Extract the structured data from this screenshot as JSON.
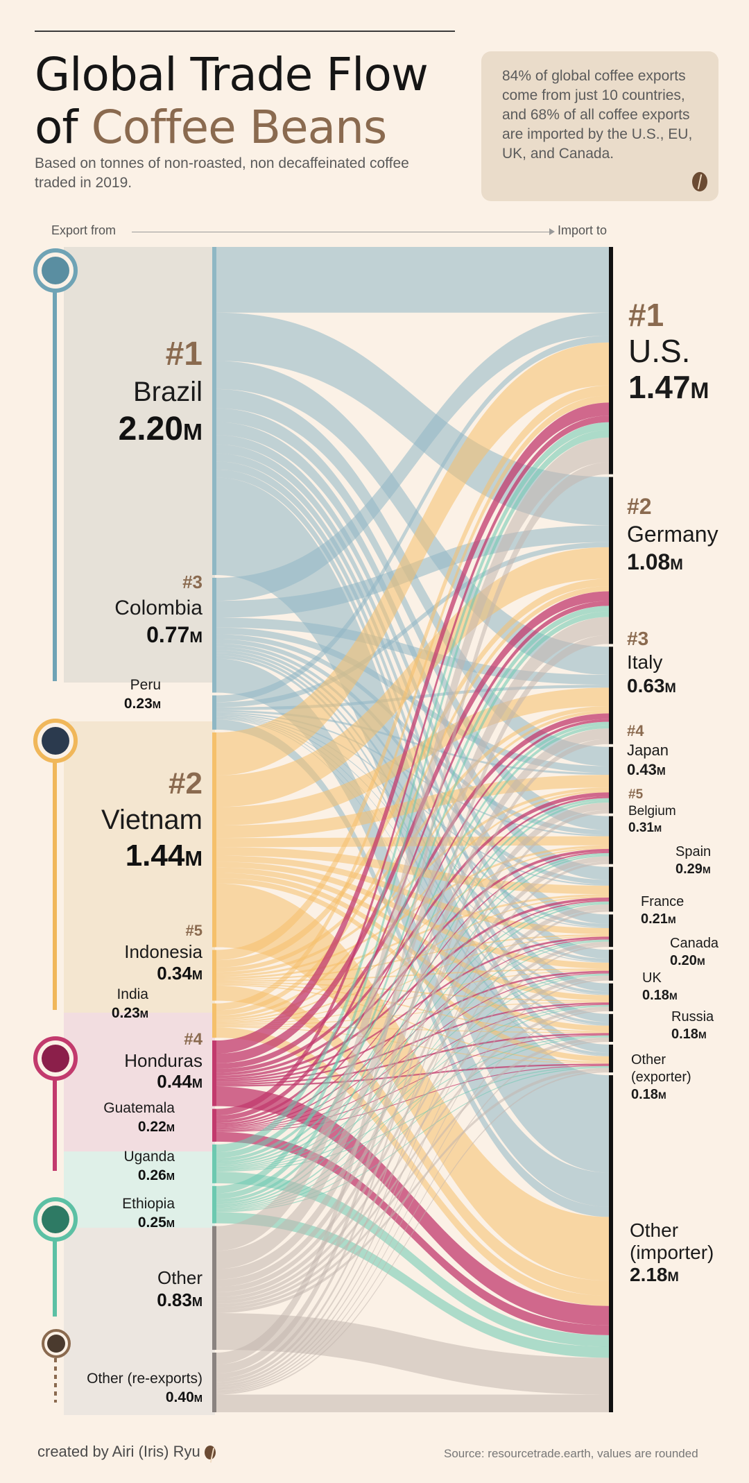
{
  "header": {
    "title_line1": "Global Trade Flow",
    "title_line2_prefix": "of ",
    "title_line2_accent": "Coffee Beans",
    "subtitle": "Based on tonnes of non-roasted, non decaffeinated coffee traded in 2019.",
    "callout": "84% of global coffee exports come from just 10 countries, and 68% of all coffee exports are imported by the U.S., EU, UK, and Canada."
  },
  "axis": {
    "export_label": "Export from",
    "import_label": "Import to"
  },
  "colors": {
    "south_america": "#8fb7c4",
    "asia": "#f5c06b",
    "central_america": "#c23a6d",
    "africa": "#6cc9b0",
    "other": "#c3b7ae",
    "background": "#fbf1e6",
    "accent": "#8a6a4f"
  },
  "exporters": [
    {
      "rank": "#1",
      "name": "Brazil",
      "value": "2.20",
      "unit": "M"
    },
    {
      "rank": "#3",
      "name": "Colombia",
      "value": "0.77",
      "unit": "M"
    },
    {
      "rank": "",
      "name": "Peru",
      "value": "0.23",
      "unit": "M"
    },
    {
      "rank": "#2",
      "name": "Vietnam",
      "value": "1.44",
      "unit": "M"
    },
    {
      "rank": "#5",
      "name": "Indonesia",
      "value": "0.34",
      "unit": "M"
    },
    {
      "rank": "",
      "name": "India",
      "value": "0.23",
      "unit": "M"
    },
    {
      "rank": "#4",
      "name": "Honduras",
      "value": "0.44",
      "unit": "M"
    },
    {
      "rank": "",
      "name": "Guatemala",
      "value": "0.22",
      "unit": "M"
    },
    {
      "rank": "",
      "name": "Uganda",
      "value": "0.26",
      "unit": "M"
    },
    {
      "rank": "",
      "name": "Ethiopia",
      "value": "0.25",
      "unit": "M"
    },
    {
      "rank": "",
      "name": "Other",
      "value": "0.83",
      "unit": "M"
    },
    {
      "rank": "",
      "name": "Other (re-exports)",
      "value": "0.40",
      "unit": "M"
    }
  ],
  "importers": [
    {
      "rank": "#1",
      "name": "U.S.",
      "value": "1.47",
      "unit": "M"
    },
    {
      "rank": "#2",
      "name": "Germany",
      "value": "1.08",
      "unit": "M"
    },
    {
      "rank": "#3",
      "name": "Italy",
      "value": "0.63",
      "unit": "M"
    },
    {
      "rank": "#4",
      "name": "Japan",
      "value": "0.43",
      "unit": "M"
    },
    {
      "rank": "#5",
      "name": "Belgium",
      "value": "0.31",
      "unit": "M"
    },
    {
      "rank": "",
      "name": "Spain",
      "value": "0.29",
      "unit": "M"
    },
    {
      "rank": "",
      "name": "France",
      "value": "0.21",
      "unit": "M"
    },
    {
      "rank": "",
      "name": "Canada",
      "value": "0.20",
      "unit": "M"
    },
    {
      "rank": "",
      "name": "UK",
      "value": "0.18",
      "unit": "M"
    },
    {
      "rank": "",
      "name": "Russia",
      "value": "0.18",
      "unit": "M"
    },
    {
      "rank": "",
      "name": "Other (exporter)",
      "value": "0.18",
      "unit": "M"
    },
    {
      "rank": "",
      "name": "Other (importer)",
      "value": "2.18",
      "unit": "M"
    }
  ],
  "footer": {
    "credit": "created by Airi (Iris) Ryu",
    "source": "Source: resourcetrade.earth, values are rounded"
  }
}
